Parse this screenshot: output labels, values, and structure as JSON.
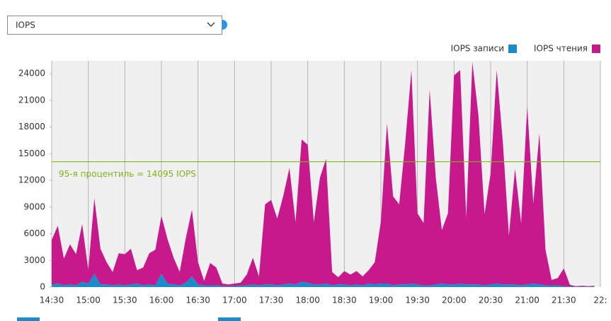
{
  "dropdown": "IOPS",
  "chart_data": {
    "type": "stacked_area",
    "x": [
      870,
      875,
      880,
      885,
      890,
      895,
      900,
      905,
      910,
      915,
      920,
      925,
      930,
      935,
      940,
      945,
      950,
      955,
      960,
      965,
      970,
      975,
      980,
      985,
      990,
      995,
      1000,
      1005,
      1010,
      1015,
      1020,
      1025,
      1030,
      1035,
      1040,
      1045,
      1050,
      1055,
      1060,
      1065,
      1070,
      1075,
      1080,
      1085,
      1090,
      1095,
      1100,
      1105,
      1110,
      1115,
      1120,
      1125,
      1130,
      1135,
      1140,
      1145,
      1150,
      1155,
      1160,
      1165,
      1170,
      1175,
      1180,
      1185,
      1190,
      1195,
      1200,
      1205,
      1210,
      1215,
      1220,
      1225,
      1230,
      1235,
      1240,
      1245,
      1250,
      1255,
      1260,
      1265,
      1270,
      1275,
      1280,
      1285,
      1290,
      1295,
      1300,
      1305,
      1310,
      1315
    ],
    "series": [
      {
        "name": "IOPS записи",
        "color": "#1a8ccb",
        "values": [
          300,
          400,
          200,
          300,
          200,
          600,
          400,
          1500,
          300,
          300,
          200,
          300,
          200,
          300,
          400,
          200,
          300,
          200,
          1500,
          400,
          300,
          200,
          500,
          1200,
          300,
          200,
          200,
          200,
          100,
          100,
          100,
          200,
          200,
          300,
          200,
          300,
          300,
          200,
          300,
          400,
          300,
          600,
          500,
          300,
          300,
          400,
          200,
          300,
          300,
          200,
          300,
          200,
          400,
          300,
          400,
          400,
          200,
          300,
          300,
          400,
          300,
          200,
          200,
          300,
          400,
          300,
          300,
          400,
          300,
          300,
          300,
          200,
          300,
          400,
          300,
          300,
          300,
          200,
          300,
          400,
          300,
          200,
          200,
          200,
          100,
          50,
          50,
          50,
          50,
          50
        ]
      },
      {
        "name": "IOPS чтения",
        "color": "#c8198c",
        "values": [
          5000,
          6500,
          3000,
          4500,
          3500,
          6500,
          1500,
          8500,
          4000,
          2500,
          1500,
          3500,
          3500,
          4000,
          1500,
          2000,
          3500,
          4000,
          6500,
          5000,
          3000,
          1500,
          5000,
          7500,
          2500,
          500,
          2500,
          2000,
          300,
          200,
          300,
          300,
          1200,
          3000,
          1000,
          9000,
          9500,
          7500,
          10000,
          13000,
          7000,
          16000,
          15500,
          7000,
          12000,
          14000,
          1500,
          800,
          1500,
          1200,
          1500,
          1000,
          1500,
          2500,
          7000,
          18000,
          10000,
          9000,
          16000,
          24000,
          8000,
          7000,
          22000,
          12000,
          6000,
          8000,
          23500,
          24000,
          7500,
          25000,
          19000,
          8000,
          12500,
          24000,
          16000,
          5500,
          13000,
          7000,
          20000,
          9000,
          17000,
          4000,
          600,
          800,
          2000,
          200,
          50,
          100,
          50,
          100
        ]
      }
    ],
    "xlim": [
      870,
      1320
    ],
    "xticks": [
      {
        "value": 870,
        "label": "14:30"
      },
      {
        "value": 900,
        "label": "15:00"
      },
      {
        "value": 930,
        "label": "15:30"
      },
      {
        "value": 960,
        "label": "16:00"
      },
      {
        "value": 990,
        "label": "16:30"
      },
      {
        "value": 1020,
        "label": "17:00"
      },
      {
        "value": 1050,
        "label": "17:30"
      },
      {
        "value": 1080,
        "label": "18:00"
      },
      {
        "value": 1110,
        "label": "18:30"
      },
      {
        "value": 1140,
        "label": "19:00"
      },
      {
        "value": 1170,
        "label": "19:30"
      },
      {
        "value": 1200,
        "label": "20:00"
      },
      {
        "value": 1230,
        "label": "20:30"
      },
      {
        "value": 1260,
        "label": "21:00"
      },
      {
        "value": 1290,
        "label": "21:30"
      },
      {
        "value": 1320,
        "label": "22:"
      }
    ],
    "ylim": [
      0,
      25440
    ],
    "yticks": [
      0,
      3000,
      6000,
      9000,
      12000,
      15000,
      18000,
      21000,
      24000
    ],
    "percentile_line": {
      "value": 14095,
      "label": "95-я процентиль = 14095 IOPS",
      "color": "#7cb518"
    },
    "grid": "x"
  }
}
